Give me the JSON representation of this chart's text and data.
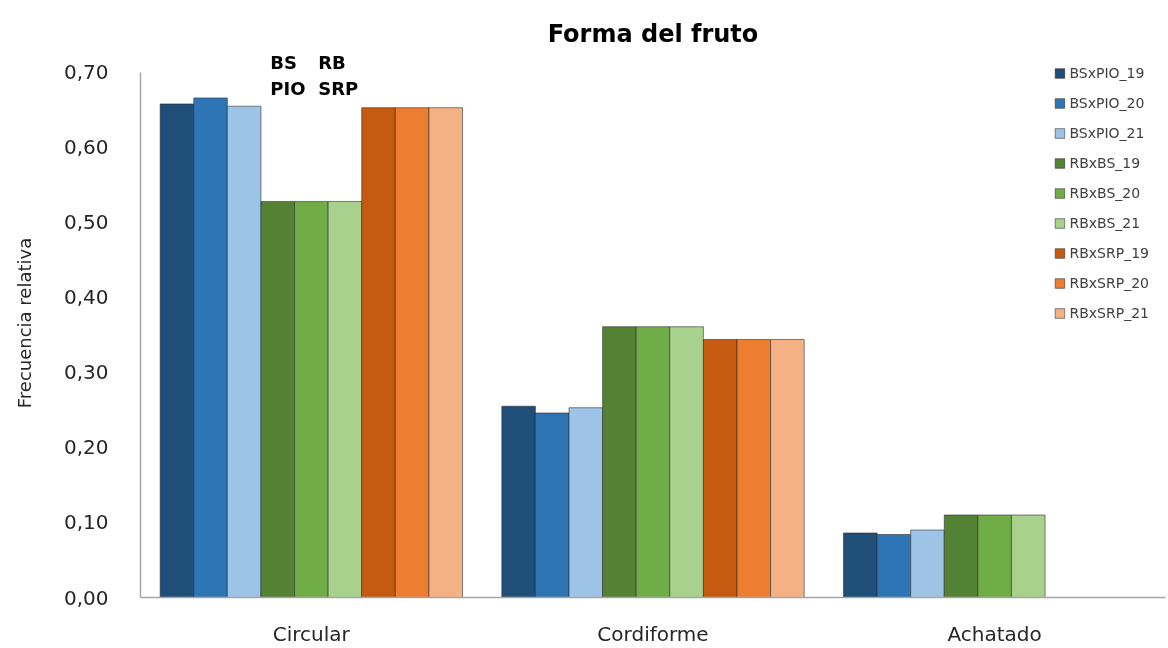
{
  "chart_data": {
    "type": "bar",
    "title": "Forma del fruto",
    "ylabel": "Frecuencia relativa",
    "categories": [
      "Circular",
      "Cordiforme",
      "Achatado"
    ],
    "series": [
      {
        "name": "BSxPIO_19",
        "color": "#1f4e79",
        "values": [
          0.658,
          0.255,
          0.086
        ]
      },
      {
        "name": "BSxPIO_20",
        "color": "#2e75b6",
        "values": [
          0.666,
          0.246,
          0.084
        ]
      },
      {
        "name": "BSxPIO_21",
        "color": "#9dc3e6",
        "values": [
          0.655,
          0.253,
          0.09
        ]
      },
      {
        "name": "RBxBS_19",
        "color": "#548235",
        "values": [
          0.528,
          0.361,
          0.11
        ]
      },
      {
        "name": "RBxBS_20",
        "color": "#70ad47",
        "values": [
          0.528,
          0.361,
          0.11
        ]
      },
      {
        "name": "RBxBS_21",
        "color": "#a9d18e",
        "values": [
          0.528,
          0.361,
          0.11
        ]
      },
      {
        "name": "RBxSRP_19",
        "color": "#c55a11",
        "values": [
          0.653,
          0.344,
          null
        ]
      },
      {
        "name": "RBxSRP_20",
        "color": "#ed7d31",
        "values": [
          0.653,
          0.344,
          null
        ]
      },
      {
        "name": "RBxSRP_21",
        "color": "#f4b183",
        "values": [
          0.653,
          0.344,
          null
        ]
      }
    ],
    "ylim": [
      0,
      0.7
    ],
    "yticks": [
      {
        "value": 0,
        "label": "0,00"
      },
      {
        "value": 0.1,
        "label": "0,10"
      },
      {
        "value": 0.2,
        "label": "0,20"
      },
      {
        "value": 0.3,
        "label": "0,30"
      },
      {
        "value": 0.4,
        "label": "0,40"
      },
      {
        "value": 0.5,
        "label": "0,50"
      },
      {
        "value": 0.6,
        "label": "0,60"
      },
      {
        "value": 0.7,
        "label": "0,70"
      }
    ],
    "grid": false,
    "legend": "top right",
    "annotations": [
      "BS\nPIO",
      "RB\nSRP"
    ]
  }
}
